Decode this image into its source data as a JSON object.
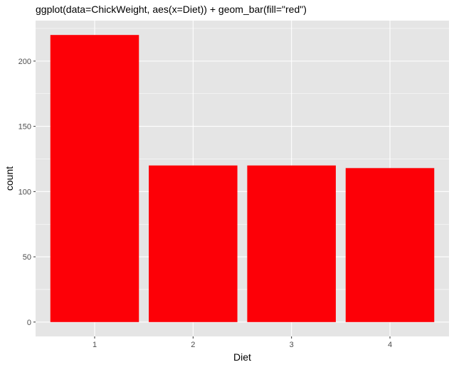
{
  "chart_data": {
    "type": "bar",
    "title": "ggplot(data=ChickWeight, aes(x=Diet)) + geom_bar(fill=\"red\")",
    "xlabel": "Diet",
    "ylabel": "count",
    "categories": [
      "1",
      "2",
      "3",
      "4"
    ],
    "values": [
      220,
      120,
      120,
      118
    ],
    "ylim": [
      -11,
      231
    ],
    "yticks": [
      0,
      50,
      100,
      150,
      200
    ],
    "grid": true,
    "colors": {
      "bar": "#fd0007",
      "panel_background": "#e5e5e5",
      "grid_major": "#ffffff",
      "tick_text": "#4d4d4d"
    }
  }
}
